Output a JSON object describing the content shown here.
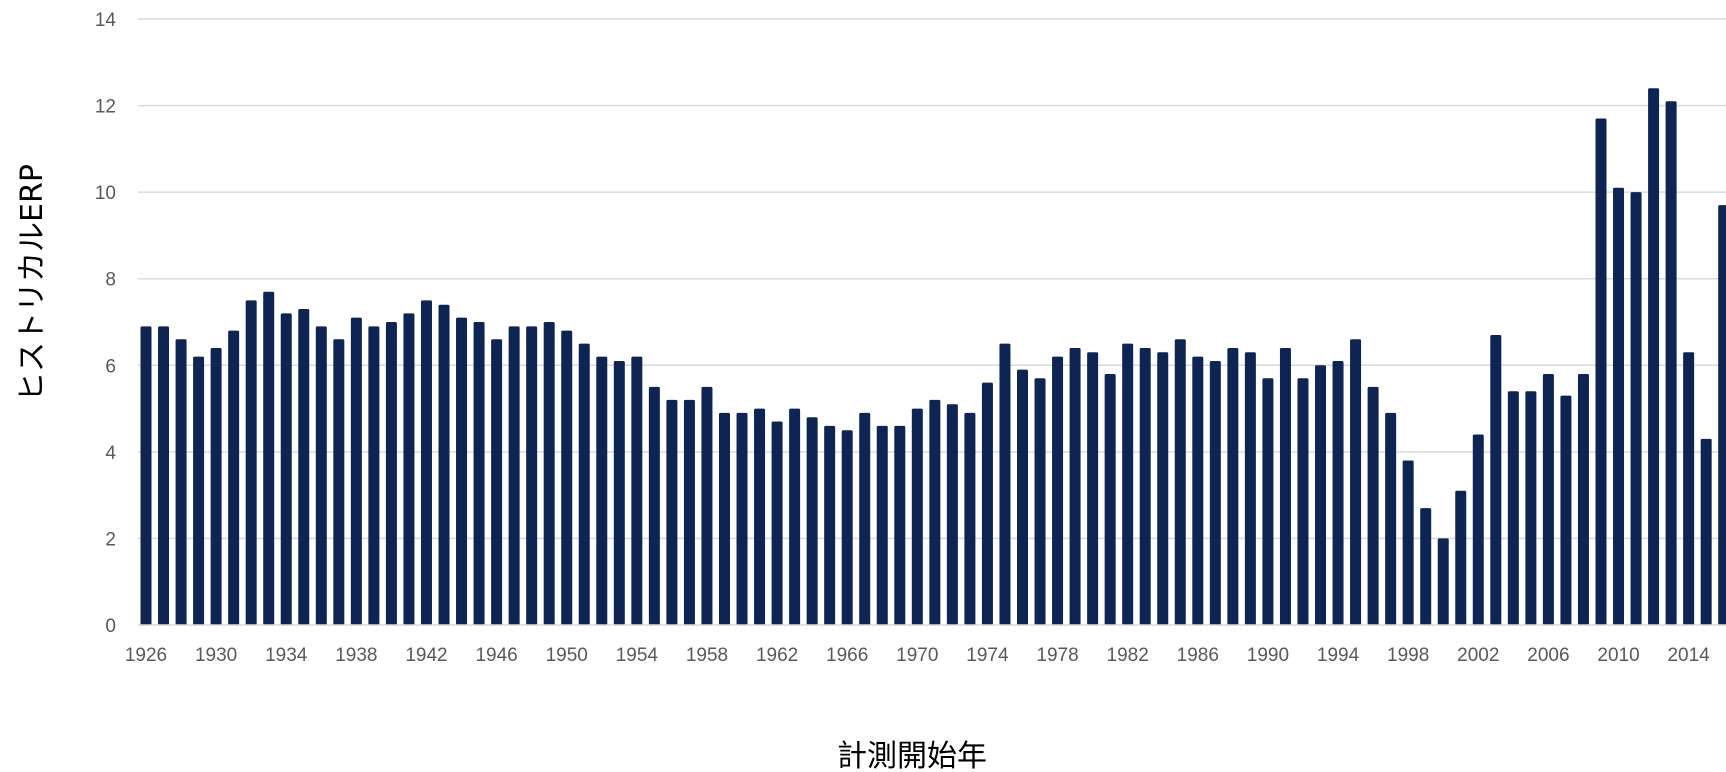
{
  "chart_data": {
    "type": "bar",
    "title": "",
    "xlabel": "計測開始年",
    "ylabel": "ヒストリカルERP",
    "ylim": [
      0,
      14
    ],
    "yticks": [
      0,
      2,
      4,
      6,
      8,
      10,
      12,
      14
    ],
    "grid": true,
    "legend": "none",
    "bar_color": "#0e2452",
    "categories": [
      1926,
      1927,
      1928,
      1929,
      1930,
      1931,
      1932,
      1933,
      1934,
      1935,
      1936,
      1937,
      1938,
      1939,
      1940,
      1941,
      1942,
      1943,
      1944,
      1945,
      1946,
      1947,
      1948,
      1949,
      1950,
      1951,
      1952,
      1953,
      1954,
      1955,
      1956,
      1957,
      1958,
      1959,
      1960,
      1961,
      1962,
      1963,
      1964,
      1965,
      1966,
      1967,
      1968,
      1969,
      1970,
      1971,
      1972,
      1973,
      1974,
      1975,
      1976,
      1977,
      1978,
      1979,
      1980,
      1981,
      1982,
      1983,
      1984,
      1985,
      1986,
      1987,
      1988,
      1989,
      1990,
      1991,
      1992,
      1993,
      1994,
      1995,
      1996,
      1997,
      1998,
      1999,
      2000,
      2001,
      2002,
      2003,
      2004,
      2005,
      2006,
      2007,
      2008,
      2009,
      2010,
      2011,
      2012,
      2013,
      2014,
      2015,
      2016
    ],
    "xtick_labels": [
      "1926",
      "1930",
      "1934",
      "1938",
      "1942",
      "1946",
      "1950",
      "1954",
      "1958",
      "1962",
      "1966",
      "1970",
      "1974",
      "1978",
      "1982",
      "1986",
      "1990",
      "1994",
      "1998",
      "2002",
      "2006",
      "2010",
      "2014"
    ],
    "values": [
      6.9,
      6.9,
      6.6,
      6.2,
      6.4,
      6.8,
      7.5,
      7.7,
      7.2,
      7.3,
      6.9,
      6.6,
      7.1,
      6.9,
      7.0,
      7.2,
      7.5,
      7.4,
      7.1,
      7.0,
      6.6,
      6.9,
      6.9,
      7.0,
      6.8,
      6.5,
      6.2,
      6.1,
      6.2,
      5.5,
      5.2,
      5.2,
      5.5,
      4.9,
      4.9,
      5.0,
      4.7,
      5.0,
      4.8,
      4.6,
      4.5,
      4.9,
      4.6,
      4.6,
      5.0,
      5.2,
      5.1,
      4.9,
      5.6,
      6.5,
      5.9,
      5.7,
      6.2,
      6.4,
      6.3,
      5.8,
      6.5,
      6.4,
      6.3,
      6.6,
      6.2,
      6.1,
      6.4,
      6.3,
      5.7,
      6.4,
      5.7,
      6.0,
      6.1,
      6.6,
      5.5,
      4.9,
      3.8,
      2.7,
      2.0,
      3.1,
      4.4,
      6.7,
      5.4,
      5.4,
      5.8,
      5.3,
      5.8,
      11.7,
      10.1,
      10.0,
      12.4,
      12.1,
      6.3,
      4.3,
      9.7
    ]
  }
}
